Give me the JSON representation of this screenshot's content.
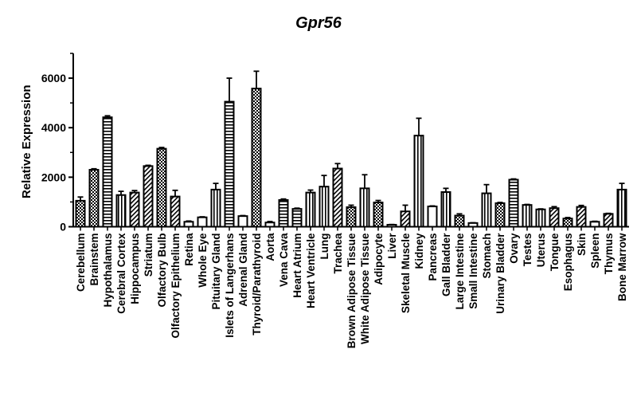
{
  "chart_data": {
    "type": "bar",
    "title": "Gpr56",
    "ylabel": "Relative Expression",
    "xlabel": "",
    "ylim": [
      0,
      7000
    ],
    "yticks": [
      0,
      2000,
      4000,
      6000
    ],
    "grid": false,
    "categories": [
      "Cerebellum",
      "Brainstem",
      "Hypothalamus",
      "Cerebral Cortex",
      "Hippocampus",
      "Striatum",
      "Olfactory Bulb",
      "Olfactory Epithelium",
      "Retina",
      "Whole Eye",
      "Pituitary Gland",
      "Islets of Langerhans",
      "Adrenal Gland",
      "Thyroid/Parathyroid",
      "Aorta",
      "Vena Cava",
      "Heart Atrium",
      "Heart Ventricle",
      "Lung",
      "Trachea",
      "Brown Adipose Tissue",
      "White Adipose Tissue",
      "Adipocyte",
      "Liver",
      "Skeletal Muscle",
      "Kidney",
      "Pancreas",
      "Gall Bladder",
      "Large Intestine",
      "Small Intestine",
      "Stomach",
      "Urinary Bladder",
      "Ovary",
      "Testes",
      "Uterus",
      "Tongue",
      "Esophagus",
      "Skin",
      "Spleen",
      "Thymus",
      "Bone Marrow"
    ],
    "values": [
      1050,
      2300,
      4420,
      1280,
      1380,
      2450,
      3150,
      1220,
      200,
      380,
      1500,
      5050,
      430,
      5580,
      170,
      1080,
      720,
      1380,
      1620,
      2350,
      790,
      1550,
      980,
      80,
      620,
      3680,
      820,
      1400,
      450,
      150,
      1350,
      950,
      1900,
      880,
      700,
      750,
      330,
      800,
      200,
      520,
      1500
    ],
    "errors": [
      150,
      40,
      60,
      150,
      80,
      30,
      50,
      250,
      30,
      20,
      250,
      950,
      20,
      700,
      40,
      40,
      30,
      100,
      450,
      200,
      80,
      550,
      80,
      10,
      250,
      700,
      20,
      150,
      70,
      10,
      350,
      30,
      30,
      20,
      20,
      60,
      40,
      60,
      20,
      20,
      250
    ],
    "patterns": [
      "checker",
      "checker",
      "hlines",
      "vlines",
      "diag",
      "diag",
      "checker",
      "diag",
      "plain",
      "plain",
      "vlines",
      "hlines",
      "plain",
      "checker",
      "plain",
      "hlines",
      "hlines",
      "vlines",
      "vlines",
      "diag",
      "checker",
      "vlines",
      "checker",
      "plain",
      "diag",
      "vlines",
      "plain",
      "vlines",
      "checker",
      "plain",
      "vlines",
      "checker",
      "hlines",
      "vlines",
      "vlines",
      "diag",
      "checker",
      "diag",
      "plain",
      "diag",
      "vlines"
    ]
  }
}
